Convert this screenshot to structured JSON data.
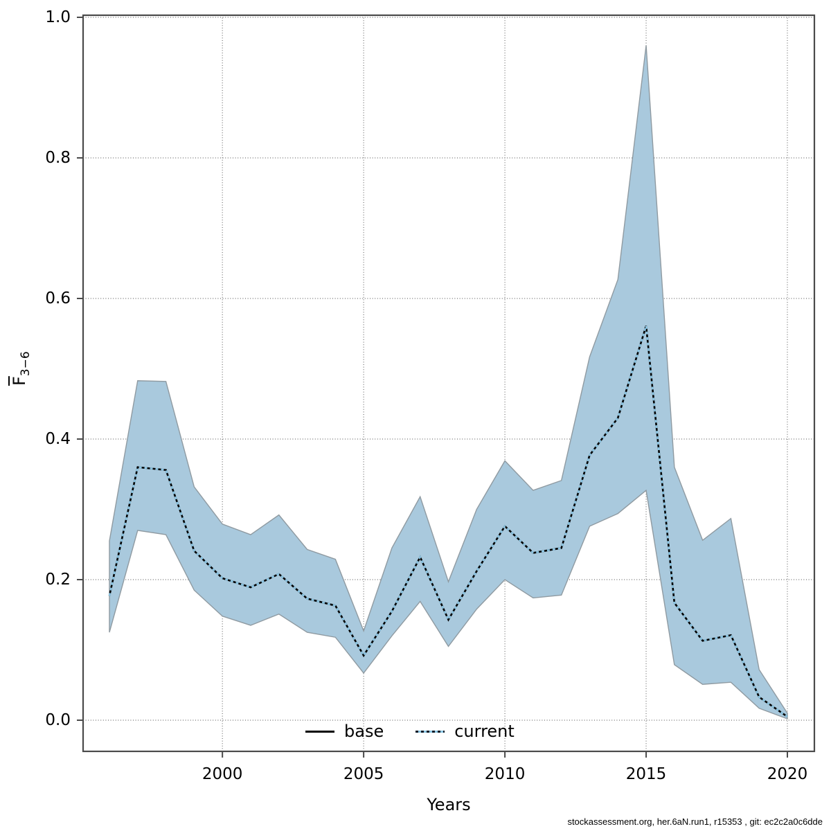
{
  "figure": {
    "caption": "stockassessment.org, her.6aN.run1, r15353 , git: ec2c2a0c6dde",
    "y_axis": {
      "label_main": "F",
      "label_sub": "3−6"
    },
    "x_axis": {
      "label": "Years"
    },
    "legend": {
      "items": [
        {
          "label": "base",
          "style": "solid-black"
        },
        {
          "label": "current",
          "style": "dotted-lightblue-over-dark"
        }
      ]
    }
  },
  "chart_data": {
    "type": "line",
    "title": "",
    "xlabel": "Years",
    "ylabel": "F̅ 3−6 (mean F ages 3–6)",
    "x": [
      1996,
      1997,
      1998,
      1999,
      2000,
      2001,
      2002,
      2003,
      2004,
      2005,
      2006,
      2007,
      2008,
      2009,
      2010,
      2011,
      2012,
      2013,
      2014,
      2015,
      2016,
      2017,
      2018,
      2019,
      2020
    ],
    "series": [
      {
        "name": "base",
        "note": "solid black line, coincides with (hidden beneath) the current line",
        "values": [
          0.177,
          0.36,
          0.356,
          0.241,
          0.202,
          0.189,
          0.208,
          0.173,
          0.163,
          0.092,
          0.155,
          0.232,
          0.143,
          0.212,
          0.276,
          0.238,
          0.245,
          0.377,
          0.43,
          0.561,
          0.167,
          0.113,
          0.121,
          0.033,
          0.005
        ]
      },
      {
        "name": "current",
        "note": "light-blue dotted line over dark base line, with shaded confidence band",
        "values": [
          0.177,
          0.36,
          0.356,
          0.241,
          0.202,
          0.189,
          0.208,
          0.173,
          0.163,
          0.092,
          0.155,
          0.232,
          0.143,
          0.212,
          0.276,
          0.238,
          0.245,
          0.377,
          0.43,
          0.561,
          0.167,
          0.113,
          0.121,
          0.033,
          0.005
        ]
      }
    ],
    "band": {
      "name": "current-confidence-interval",
      "lower": [
        0.125,
        0.27,
        0.264,
        0.185,
        0.148,
        0.135,
        0.151,
        0.125,
        0.118,
        0.067,
        0.12,
        0.169,
        0.105,
        0.158,
        0.2,
        0.174,
        0.178,
        0.276,
        0.294,
        0.327,
        0.079,
        0.051,
        0.054,
        0.017,
        0.002
      ],
      "upper": [
        0.255,
        0.483,
        0.482,
        0.332,
        0.279,
        0.264,
        0.292,
        0.243,
        0.229,
        0.127,
        0.245,
        0.318,
        0.197,
        0.3,
        0.369,
        0.327,
        0.341,
        0.517,
        0.627,
        0.96,
        0.36,
        0.256,
        0.287,
        0.072,
        0.01
      ]
    },
    "x_ticks": [
      2000,
      2005,
      2010,
      2015,
      2020
    ],
    "y_ticks": [
      0.0,
      0.2,
      0.4,
      0.6,
      0.8,
      1.0
    ],
    "y_tick_labels": [
      "0.0",
      "0.2",
      "0.4",
      "0.6",
      "0.8",
      "1.0"
    ],
    "x_tick_labels": [
      "2000",
      "2005",
      "2010",
      "2015",
      "2020"
    ],
    "ylim": [
      0.0,
      1.0
    ],
    "xlim": [
      1995,
      2021
    ],
    "grid": "dotted",
    "legend_position": "bottom-center-inside",
    "colors": {
      "band_fill": "#a9c9dd",
      "band_edge": "#8f9aa1",
      "current_line_light": "#8bc5e3",
      "current_line_dark": "#0b1c28",
      "base_line": "#000000",
      "grid": "#6e6e6e",
      "axis_box": "#4a4a4a"
    }
  }
}
